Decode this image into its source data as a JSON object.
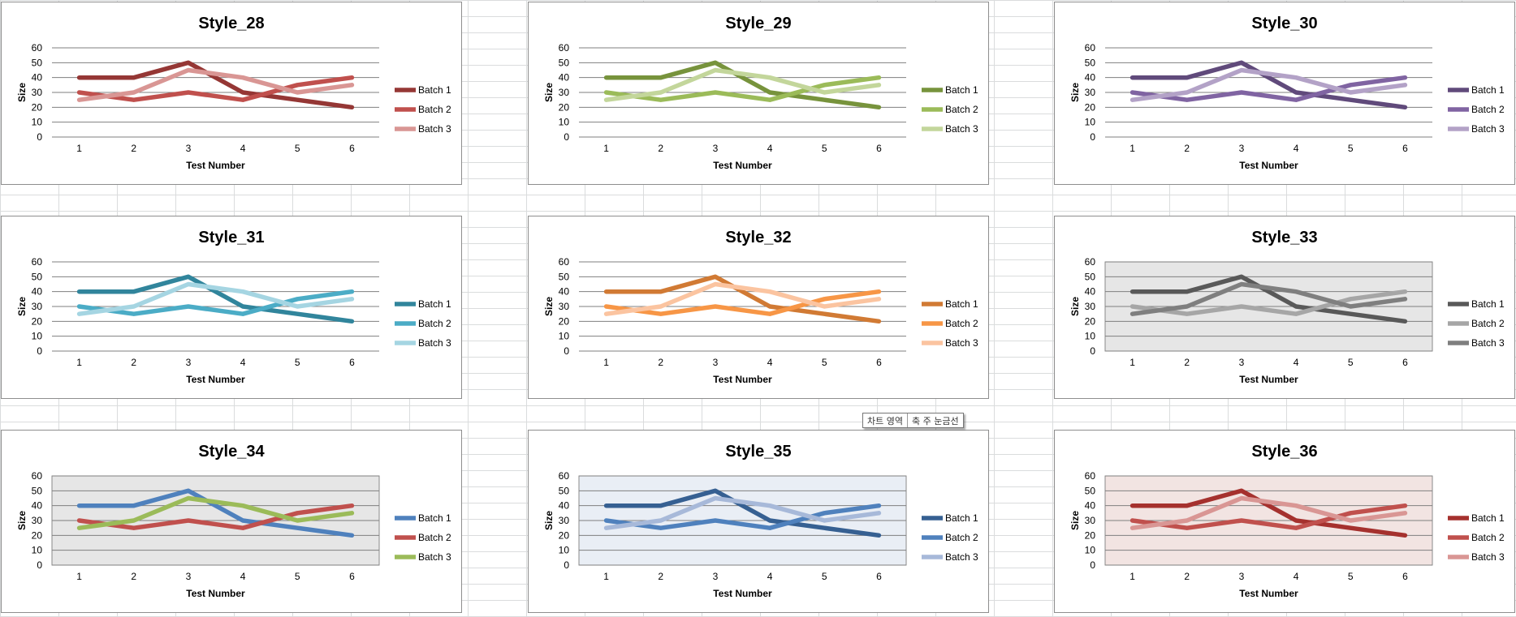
{
  "chart_data": [
    {
      "type": "line",
      "title": "Style_28",
      "xlabel": "Test Number",
      "ylabel": "Size",
      "x": [
        1,
        2,
        3,
        4,
        5,
        6
      ],
      "ylim": [
        0,
        60
      ],
      "yticks": [
        0,
        10,
        20,
        30,
        40,
        50,
        60
      ],
      "plot_bg": "#ffffff",
      "legend": "right",
      "series": [
        {
          "name": "Batch 1",
          "color": "#953735",
          "values": [
            40,
            40,
            50,
            30,
            25,
            20
          ]
        },
        {
          "name": "Batch 2",
          "color": "#c0504d",
          "values": [
            30,
            25,
            30,
            25,
            35,
            40
          ]
        },
        {
          "name": "Batch 3",
          "color": "#d99694",
          "values": [
            25,
            30,
            45,
            40,
            30,
            35
          ]
        }
      ]
    },
    {
      "type": "line",
      "title": "Style_29",
      "xlabel": "Test Number",
      "ylabel": "Size",
      "x": [
        1,
        2,
        3,
        4,
        5,
        6
      ],
      "ylim": [
        0,
        60
      ],
      "yticks": [
        0,
        10,
        20,
        30,
        40,
        50,
        60
      ],
      "plot_bg": "#ffffff",
      "legend": "right",
      "series": [
        {
          "name": "Batch 1",
          "color": "#77933c",
          "values": [
            40,
            40,
            50,
            30,
            25,
            20
          ]
        },
        {
          "name": "Batch 2",
          "color": "#9bbb59",
          "values": [
            30,
            25,
            30,
            25,
            35,
            40
          ]
        },
        {
          "name": "Batch 3",
          "color": "#c3d69b",
          "values": [
            25,
            30,
            45,
            40,
            30,
            35
          ]
        }
      ]
    },
    {
      "type": "line",
      "title": "Style_30",
      "xlabel": "Test Number",
      "ylabel": "Size",
      "x": [
        1,
        2,
        3,
        4,
        5,
        6
      ],
      "ylim": [
        0,
        60
      ],
      "yticks": [
        0,
        10,
        20,
        30,
        40,
        50,
        60
      ],
      "plot_bg": "#ffffff",
      "legend": "right",
      "series": [
        {
          "name": "Batch 1",
          "color": "#604a7b",
          "values": [
            40,
            40,
            50,
            30,
            25,
            20
          ]
        },
        {
          "name": "Batch 2",
          "color": "#8064a2",
          "values": [
            30,
            25,
            30,
            25,
            35,
            40
          ]
        },
        {
          "name": "Batch 3",
          "color": "#b3a2c7",
          "values": [
            25,
            30,
            45,
            40,
            30,
            35
          ]
        }
      ]
    },
    {
      "type": "line",
      "title": "Style_31",
      "xlabel": "Test Number",
      "ylabel": "Size",
      "x": [
        1,
        2,
        3,
        4,
        5,
        6
      ],
      "ylim": [
        0,
        60
      ],
      "yticks": [
        0,
        10,
        20,
        30,
        40,
        50,
        60
      ],
      "plot_bg": "#ffffff",
      "legend": "right",
      "series": [
        {
          "name": "Batch 1",
          "color": "#31859c",
          "values": [
            40,
            40,
            50,
            30,
            25,
            20
          ]
        },
        {
          "name": "Batch 2",
          "color": "#4bacc6",
          "values": [
            30,
            25,
            30,
            25,
            35,
            40
          ]
        },
        {
          "name": "Batch 3",
          "color": "#a5d5e2",
          "values": [
            25,
            30,
            45,
            40,
            30,
            35
          ]
        }
      ]
    },
    {
      "type": "line",
      "title": "Style_32",
      "xlabel": "Test Number",
      "ylabel": "Size",
      "x": [
        1,
        2,
        3,
        4,
        5,
        6
      ],
      "ylim": [
        0,
        60
      ],
      "yticks": [
        0,
        10,
        20,
        30,
        40,
        50,
        60
      ],
      "plot_bg": "#ffffff",
      "legend": "right",
      "series": [
        {
          "name": "Batch 1",
          "color": "#d17a34",
          "values": [
            40,
            40,
            50,
            30,
            25,
            20
          ]
        },
        {
          "name": "Batch 2",
          "color": "#f79646",
          "values": [
            30,
            25,
            30,
            25,
            35,
            40
          ]
        },
        {
          "name": "Batch 3",
          "color": "#fbc4a0",
          "values": [
            25,
            30,
            45,
            40,
            30,
            35
          ]
        }
      ]
    },
    {
      "type": "line",
      "title": "Style_33",
      "xlabel": "Test Number",
      "ylabel": "Size",
      "x": [
        1,
        2,
        3,
        4,
        5,
        6
      ],
      "ylim": [
        0,
        60
      ],
      "yticks": [
        0,
        10,
        20,
        30,
        40,
        50,
        60
      ],
      "plot_bg": "#e6e6e6",
      "legend": "right",
      "series": [
        {
          "name": "Batch 1",
          "color": "#595959",
          "values": [
            40,
            40,
            50,
            30,
            25,
            20
          ]
        },
        {
          "name": "Batch 2",
          "color": "#a6a6a6",
          "values": [
            30,
            25,
            30,
            25,
            35,
            40
          ]
        },
        {
          "name": "Batch 3",
          "color": "#7f7f7f",
          "values": [
            25,
            30,
            45,
            40,
            30,
            35
          ]
        }
      ]
    },
    {
      "type": "line",
      "title": "Style_34",
      "xlabel": "Test Number",
      "ylabel": "Size",
      "x": [
        1,
        2,
        3,
        4,
        5,
        6
      ],
      "ylim": [
        0,
        60
      ],
      "yticks": [
        0,
        10,
        20,
        30,
        40,
        50,
        60
      ],
      "plot_bg": "#e6e6e6",
      "legend": "right",
      "series": [
        {
          "name": "Batch 1",
          "color": "#4f81bd",
          "values": [
            40,
            40,
            50,
            30,
            25,
            20
          ]
        },
        {
          "name": "Batch 2",
          "color": "#c0504d",
          "values": [
            30,
            25,
            30,
            25,
            35,
            40
          ]
        },
        {
          "name": "Batch 3",
          "color": "#9bbb59",
          "values": [
            25,
            30,
            45,
            40,
            30,
            35
          ]
        }
      ]
    },
    {
      "type": "line",
      "title": "Style_35",
      "xlabel": "Test Number",
      "ylabel": "Size",
      "x": [
        1,
        2,
        3,
        4,
        5,
        6
      ],
      "ylim": [
        0,
        60
      ],
      "yticks": [
        0,
        10,
        20,
        30,
        40,
        50,
        60
      ],
      "plot_bg": "#e9eef5",
      "legend": "right",
      "series": [
        {
          "name": "Batch 1",
          "color": "#366092",
          "values": [
            40,
            40,
            50,
            30,
            25,
            20
          ]
        },
        {
          "name": "Batch 2",
          "color": "#4f81bd",
          "values": [
            30,
            25,
            30,
            25,
            35,
            40
          ]
        },
        {
          "name": "Batch 3",
          "color": "#a7b9d9",
          "values": [
            25,
            30,
            45,
            40,
            30,
            35
          ]
        }
      ]
    },
    {
      "type": "line",
      "title": "Style_36",
      "xlabel": "Test Number",
      "ylabel": "Size",
      "x": [
        1,
        2,
        3,
        4,
        5,
        6
      ],
      "ylim": [
        0,
        60
      ],
      "yticks": [
        0,
        10,
        20,
        30,
        40,
        50,
        60
      ],
      "plot_bg": "#f2e4e2",
      "legend": "right",
      "series": [
        {
          "name": "Batch 1",
          "color": "#a5312e",
          "values": [
            40,
            40,
            50,
            30,
            25,
            20
          ]
        },
        {
          "name": "Batch 2",
          "color": "#c0504d",
          "values": [
            30,
            25,
            30,
            25,
            35,
            40
          ]
        },
        {
          "name": "Batch 3",
          "color": "#d99694",
          "values": [
            25,
            30,
            45,
            40,
            30,
            35
          ]
        }
      ]
    }
  ],
  "tooltip": {
    "part1": "차트 영역",
    "part2": "축 주 눈금선"
  }
}
